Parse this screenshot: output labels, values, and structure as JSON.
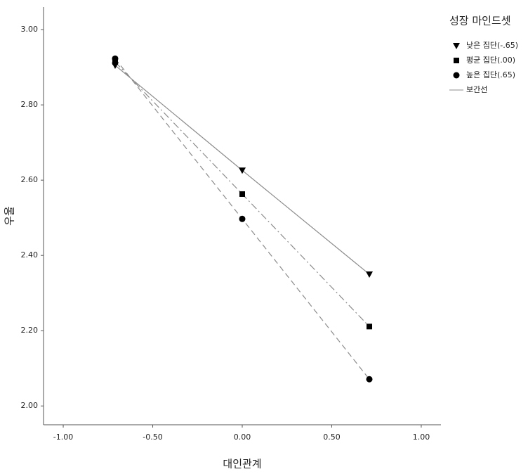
{
  "chart_data": {
    "type": "line",
    "x_label": "대인관계",
    "y_label": "우울",
    "legend_title": "성장 마인드셋",
    "interpolation_line_label": "보간선",
    "x": [
      -0.71,
      0,
      0.71
    ],
    "series": [
      {
        "name": "낮은 집단(-.65)",
        "color": "#000000",
        "line_color": "#8c8c8c",
        "marker": "triangle",
        "dash": "solid",
        "values": [
          2.905,
          2.626,
          2.35
        ]
      },
      {
        "name": "평균 집단(.00)",
        "color": "#000000",
        "line_color": "#8c8c8c",
        "marker": "square",
        "dash": "dashdot",
        "values": [
          2.914,
          2.563,
          2.211
        ]
      },
      {
        "name": "높은 집단(.65)",
        "color": "#000000",
        "line_color": "#8c8c8c",
        "marker": "circle",
        "dash": "dashed",
        "values": [
          2.923,
          2.497,
          2.071
        ]
      }
    ],
    "xlim": [
      -1.11,
      1.11
    ],
    "xticks": [
      {
        "value": -1,
        "label": "-1.00"
      },
      {
        "value": -0.5,
        "label": "-0.50"
      },
      {
        "value": 0,
        "label": "0.00"
      },
      {
        "value": 0.5,
        "label": "0.50"
      },
      {
        "value": 1,
        "label": "1.00"
      }
    ],
    "ylim": [
      1.95,
      3.06
    ],
    "yticks": [
      {
        "value": 2,
        "label": "2.00"
      },
      {
        "value": 2.2,
        "label": "2.20"
      },
      {
        "value": 2.4,
        "label": "2.40"
      },
      {
        "value": 2.6,
        "label": "2.60"
      },
      {
        "value": 2.8,
        "label": "2.80"
      },
      {
        "value": 3,
        "label": "3.00"
      }
    ],
    "grid": false
  }
}
